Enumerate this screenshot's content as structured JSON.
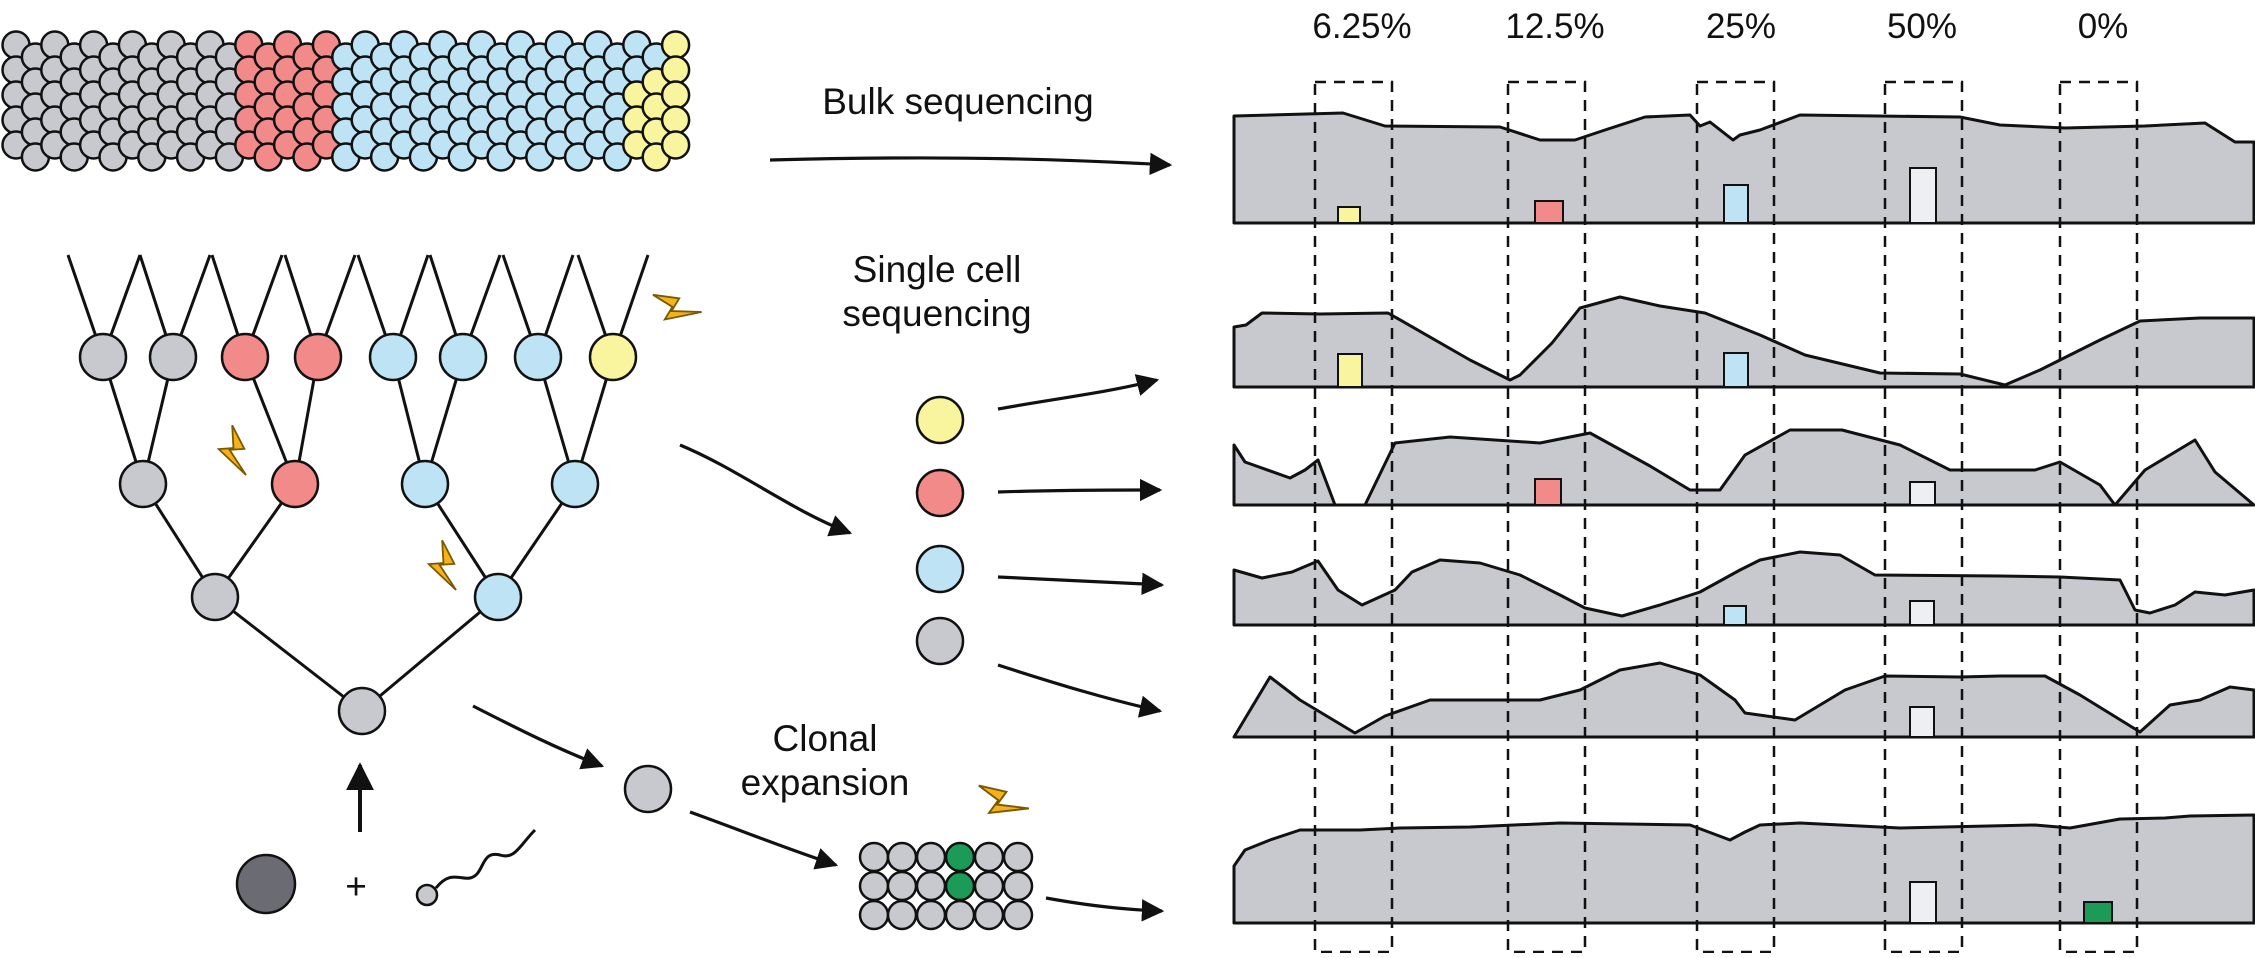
{
  "labels": {
    "bulk": "Bulk sequencing",
    "single_line1": "Single cell",
    "single_line2": "sequencing",
    "clonal_line1": "Clonal",
    "clonal_line2": "expansion",
    "plus": "+"
  },
  "percentages": [
    "6.25%",
    "12.5%",
    "25%",
    "50%",
    "0%"
  ],
  "colors": {
    "gray": "#c7c9ce",
    "red": "#f28a8a",
    "blue": "#bde3f4",
    "yellow": "#f9f59e",
    "green": "#1c9a57",
    "dark": "#6b6b73",
    "bolt": "#f5b21b",
    "white_block": "#eeeff2"
  },
  "icons": [
    "lightning-bolt-icon",
    "egg-cell-icon",
    "sperm-cell-icon"
  ]
}
